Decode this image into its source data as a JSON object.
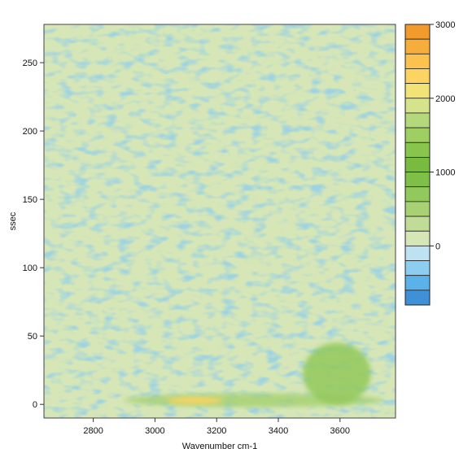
{
  "chart_data": {
    "type": "heatmap",
    "title": "",
    "xlabel": "Wavenumber cm-1",
    "ylabel": "ssec",
    "xlim": [
      2640,
      3780
    ],
    "ylim": [
      -10,
      278
    ],
    "x_ticks": [
      2800,
      3000,
      3200,
      3400,
      3600
    ],
    "x_tick_labels": [
      "2800",
      "3000",
      "3200",
      "3400",
      "3600"
    ],
    "y_ticks": [
      0,
      50,
      100,
      150,
      200,
      250
    ],
    "y_tick_labels": [
      "0",
      "50",
      "100",
      "150",
      "200",
      "250"
    ],
    "color_scale": {
      "range": [
        -800,
        3000
      ],
      "ticks": [
        0,
        1000,
        2000,
        3000
      ],
      "tick_labels": [
        "0",
        "1000",
        "2000",
        "3000"
      ],
      "levels": [
        {
          "min": 2800,
          "max": 3000,
          "color": "#f39a2d"
        },
        {
          "min": 2600,
          "max": 2800,
          "color": "#f7ad3c"
        },
        {
          "min": 2400,
          "max": 2600,
          "color": "#fbc250"
        },
        {
          "min": 2200,
          "max": 2400,
          "color": "#fdd462"
        },
        {
          "min": 2000,
          "max": 2200,
          "color": "#f2e377"
        },
        {
          "min": 1800,
          "max": 2000,
          "color": "#d5e38b"
        },
        {
          "min": 1600,
          "max": 1800,
          "color": "#b6d87c"
        },
        {
          "min": 1400,
          "max": 1600,
          "color": "#9fce63"
        },
        {
          "min": 1200,
          "max": 1400,
          "color": "#89c44d"
        },
        {
          "min": 1000,
          "max": 1200,
          "color": "#78bb3f"
        },
        {
          "min": 800,
          "max": 1000,
          "color": "#7fbf47"
        },
        {
          "min": 600,
          "max": 800,
          "color": "#93c95c"
        },
        {
          "min": 400,
          "max": 600,
          "color": "#a8d174"
        },
        {
          "min": 200,
          "max": 400,
          "color": "#c0dc96"
        },
        {
          "min": 0,
          "max": 200,
          "color": "#d6e6b6"
        },
        {
          "min": -200,
          "max": 0,
          "color": "#bfe2f2"
        },
        {
          "min": -400,
          "max": -200,
          "color": "#8ccdf0"
        },
        {
          "min": -600,
          "max": -400,
          "color": "#5ab2e8"
        },
        {
          "min": -800,
          "max": -600,
          "color": "#3f90d6"
        }
      ]
    },
    "background_level": 100,
    "features": [
      {
        "label": "low-time band",
        "x_range": [
          2900,
          3740
        ],
        "y_range": [
          -2,
          8
        ],
        "z": 500
      },
      {
        "label": "peak",
        "x_range": [
          3040,
          3220
        ],
        "y_range": [
          0,
          6
        ],
        "z": 2200
      },
      {
        "label": "high-wavenumber patch",
        "x_range": [
          3480,
          3700
        ],
        "y_range": [
          0,
          45
        ],
        "z": 600
      }
    ],
    "grid": false,
    "legend": "colorbar right"
  }
}
